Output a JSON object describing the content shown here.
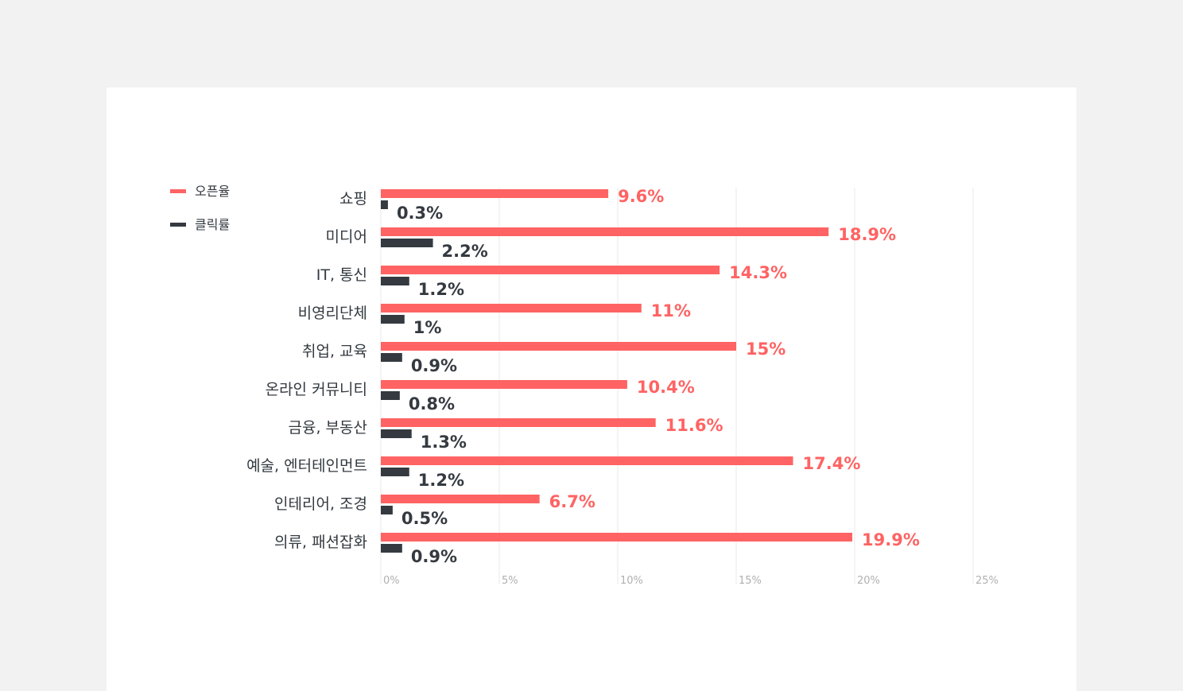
{
  "chart_data": {
    "type": "bar",
    "orientation": "horizontal",
    "categories": [
      "쇼핑",
      "미디어",
      "IT, 통신",
      "비영리단체",
      "취업, 교육",
      "온라인 커뮤니티",
      "금융, 부동산",
      "예술, 엔터테인먼트",
      "인테리어, 조경",
      "의류, 패션잡화"
    ],
    "series": [
      {
        "name": "오픈율",
        "color": "#ff6363",
        "values": [
          9.6,
          18.9,
          14.3,
          11,
          15,
          10.4,
          11.6,
          17.4,
          6.7,
          19.9
        ],
        "labels": [
          "9.6%",
          "18.9%",
          "14.3%",
          "11%",
          "15%",
          "10.4%",
          "11.6%",
          "17.4%",
          "6.7%",
          "19.9%"
        ]
      },
      {
        "name": "클릭률",
        "color": "#343a40",
        "values": [
          0.3,
          2.2,
          1.2,
          1,
          0.9,
          0.8,
          1.3,
          1.2,
          0.5,
          0.9
        ],
        "labels": [
          "0.3%",
          "2.2%",
          "1.2%",
          "1%",
          "0.9%",
          "0.8%",
          "1.3%",
          "1.2%",
          "0.5%",
          "0.9%"
        ]
      }
    ],
    "xlim": [
      0,
      25
    ],
    "xticks": [
      "0%",
      "5%",
      "10%",
      "15%",
      "20%",
      "25%"
    ],
    "grid": true,
    "legend_position": "top-left",
    "title": "",
    "xlabel": "",
    "ylabel": ""
  }
}
